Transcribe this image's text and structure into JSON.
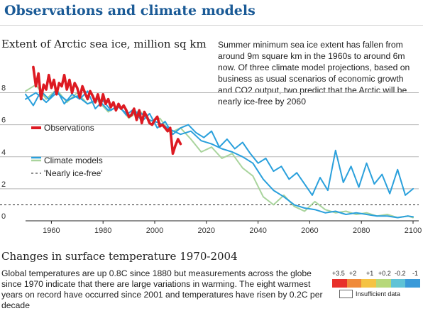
{
  "headline": "Observations and climate models",
  "chart_data": {
    "type": "line",
    "title": "Extent of Arctic sea ice, million sq km",
    "xlim": [
      1950,
      2100
    ],
    "ylim": [
      0,
      9
    ],
    "x_ticks": [
      1960,
      1980,
      2000,
      2020,
      2040,
      2060,
      2080,
      2100
    ],
    "y_ticks": [
      0,
      2,
      4,
      6,
      8
    ],
    "grid": "horizontal",
    "legend_position": "middle-left",
    "threshold": {
      "name": "'Nearly ice-free'",
      "value": 1
    },
    "annotation": "Summer minimum sea ice extent has fallen from around 9m square km in the 1960s to around 6m now. Of three climate model projections, based on business as usual scenarios of economic growth and CO2 output, two predict that the Arctic will be nearly ice-free by 2060",
    "series": [
      {
        "name": "Observations",
        "color": "#dd1a22",
        "x": [
          1953,
          1954,
          1955,
          1956,
          1957,
          1958,
          1959,
          1960,
          1961,
          1962,
          1963,
          1964,
          1965,
          1966,
          1967,
          1968,
          1969,
          1970,
          1971,
          1972,
          1973,
          1974,
          1975,
          1976,
          1977,
          1978,
          1979,
          1980,
          1981,
          1982,
          1983,
          1984,
          1985,
          1986,
          1987,
          1988,
          1989,
          1990,
          1991,
          1992,
          1993,
          1994,
          1995,
          1996,
          1997,
          1998,
          1999,
          2000,
          2001,
          2002,
          2003,
          2004,
          2005,
          2006,
          2007,
          2008,
          2009,
          2010
        ],
        "y": [
          9.6,
          8.4,
          9.2,
          7.6,
          8.5,
          8.2,
          9.1,
          8.3,
          8.8,
          7.9,
          8.6,
          8.4,
          9.1,
          8.2,
          8.8,
          8.0,
          8.6,
          8.3,
          7.7,
          8.4,
          8.0,
          7.6,
          8.1,
          7.8,
          7.4,
          7.9,
          7.2,
          7.9,
          7.3,
          7.6,
          7.1,
          7.4,
          6.9,
          7.3,
          7.0,
          7.2,
          6.9,
          6.5,
          6.6,
          7.0,
          6.3,
          6.9,
          6.1,
          6.8,
          6.5,
          6.1,
          6.0,
          6.3,
          6.5,
          5.9,
          6.0,
          5.8,
          5.6,
          5.8,
          4.2,
          4.7,
          5.1,
          4.8
        ]
      },
      {
        "name": "Climate models",
        "color": "#2aa0dc",
        "x": [
          1950,
          1953,
          1956,
          1959,
          1962,
          1965,
          1968,
          1971,
          1974,
          1977,
          1980,
          1983,
          1986,
          1989,
          1992,
          1995,
          1998,
          2001,
          2004,
          2007,
          2010,
          2013,
          2016,
          2019,
          2022,
          2025,
          2028,
          2031,
          2034,
          2037,
          2040,
          2043,
          2046,
          2049,
          2052,
          2055,
          2058,
          2061,
          2064,
          2067,
          2070,
          2073,
          2076,
          2079,
          2082,
          2085,
          2088,
          2091,
          2094,
          2097,
          2100
        ],
        "y": [
          7.9,
          7.2,
          8.1,
          7.6,
          8.2,
          7.3,
          7.9,
          7.6,
          8.1,
          7.0,
          7.5,
          6.9,
          7.2,
          6.6,
          7.0,
          6.2,
          6.7,
          5.8,
          6.2,
          5.4,
          5.8,
          6.0,
          5.5,
          5.2,
          5.6,
          4.6,
          5.1,
          4.5,
          4.9,
          4.2,
          3.6,
          3.9,
          3.1,
          3.4,
          2.6,
          3.0,
          2.3,
          1.6,
          2.7,
          1.9,
          4.4,
          2.4,
          3.4,
          2.1,
          3.6,
          2.3,
          2.9,
          1.7,
          3.2,
          1.6,
          2.0
        ]
      },
      {
        "name": "",
        "color": "#2aa0dc",
        "x": [
          1950,
          1954,
          1958,
          1962,
          1966,
          1970,
          1974,
          1978,
          1982,
          1986,
          1990,
          1994,
          1998,
          2002,
          2006,
          2010,
          2014,
          2018,
          2022,
          2026,
          2030,
          2034,
          2038,
          2042,
          2046,
          2050,
          2054,
          2058,
          2062,
          2066,
          2070,
          2074,
          2078,
          2082,
          2086,
          2090,
          2094,
          2098,
          2100
        ],
        "y": [
          7.6,
          8.0,
          7.4,
          8.0,
          7.5,
          7.8,
          7.3,
          7.6,
          6.9,
          7.1,
          6.6,
          6.8,
          6.3,
          6.1,
          5.7,
          5.4,
          5.6,
          5.0,
          4.8,
          4.5,
          4.3,
          4.0,
          3.6,
          2.6,
          1.9,
          1.5,
          1.0,
          0.8,
          0.7,
          0.5,
          0.6,
          0.4,
          0.5,
          0.4,
          0.3,
          0.3,
          0.2,
          0.3,
          0.25
        ]
      },
      {
        "name": "",
        "color": "#a9d49d",
        "x": [
          1950,
          1954,
          1958,
          1962,
          1966,
          1970,
          1974,
          1978,
          1982,
          1986,
          1990,
          1994,
          1998,
          2002,
          2006,
          2010,
          2014,
          2018,
          2022,
          2026,
          2030,
          2034,
          2038,
          2042,
          2046,
          2050,
          2054,
          2058,
          2062,
          2066,
          2070,
          2074,
          2078,
          2082,
          2086,
          2090,
          2094,
          2098,
          2100
        ],
        "y": [
          8.1,
          8.5,
          7.6,
          8.2,
          7.4,
          8.0,
          7.3,
          7.5,
          6.8,
          7.2,
          6.4,
          6.9,
          6.2,
          6.4,
          5.5,
          5.8,
          5.1,
          4.3,
          4.6,
          3.9,
          4.2,
          3.3,
          2.8,
          1.5,
          1.0,
          1.6,
          0.9,
          0.6,
          1.2,
          0.7,
          0.5,
          0.6,
          0.4,
          0.5,
          0.3,
          0.4,
          0.2,
          0.3,
          0.2
        ]
      }
    ]
  },
  "legend": {
    "observations": "Observations",
    "models": "Climate models",
    "ice_free": "'Nearly ice-free'"
  },
  "section2": {
    "title": "Changes in surface temperature 1970-2004",
    "text": "Global temperatures are up 0.8C since 1880 but measurements across the globe since 1970 indicate that there are large variations in warming. The eight warmest years on record have occurred since 2001 and temperatures have risen by 0.2C per decade",
    "scale_labels": [
      "+3.5",
      "+2",
      "+1",
      "+0.2",
      "-0.2",
      "-1"
    ],
    "scale_colors": [
      "#e8302a",
      "#f08a3a",
      "#f5c343",
      "#b6d87a",
      "#5fc3d6",
      "#3a9ad9"
    ],
    "insufficient": "Insufficient data"
  }
}
